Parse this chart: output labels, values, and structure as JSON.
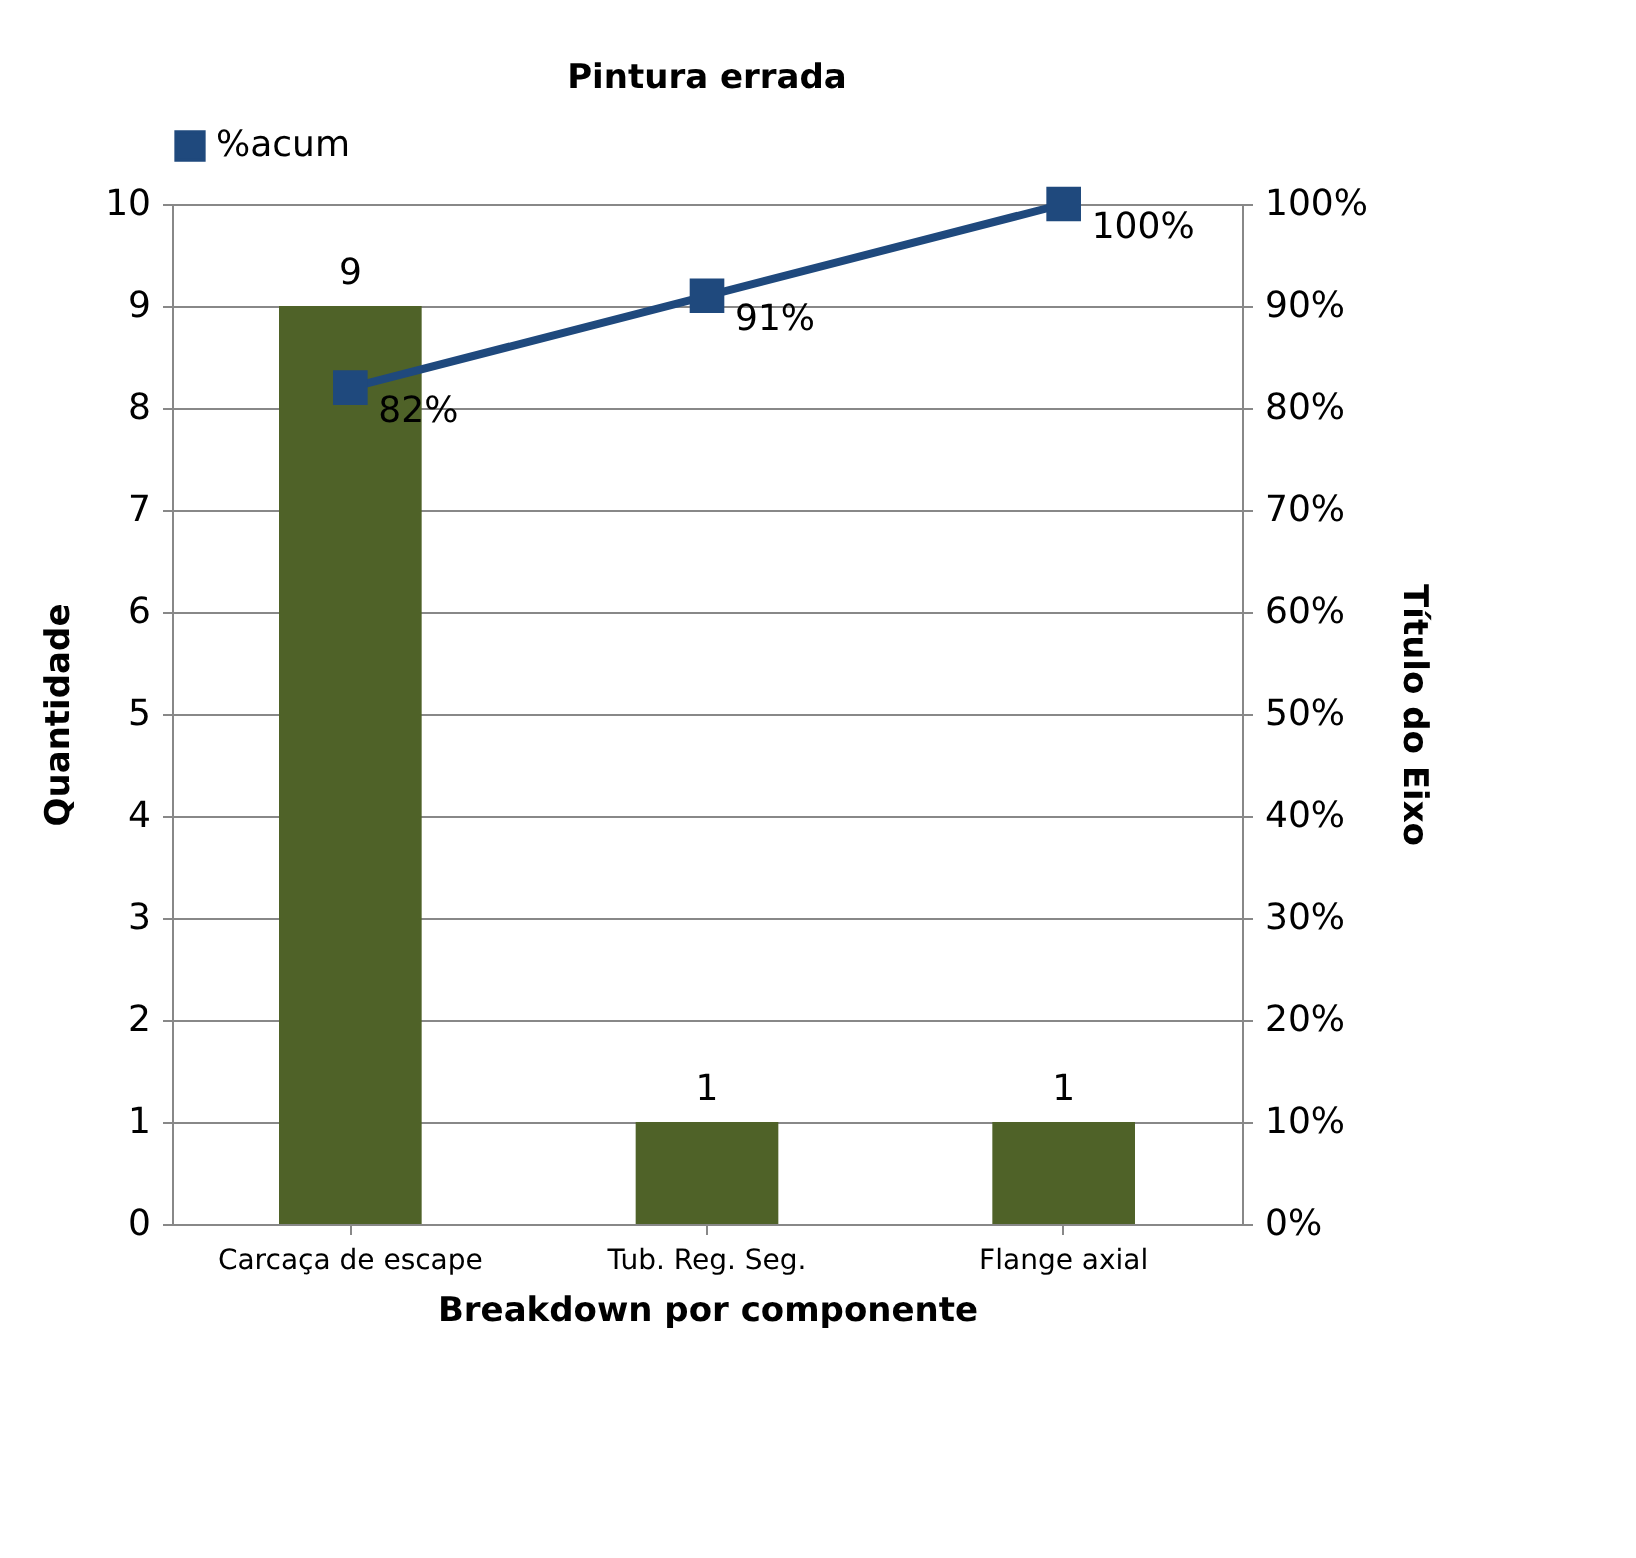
{
  "chart_data": {
    "type": "bar",
    "title": "Pintura errada",
    "xlabel": "Breakdown por componente",
    "ylabel": "Quantidade",
    "y2label": "Título do Eixo",
    "categories": [
      "Carcaça de escape",
      "Tub. Reg. Seg.",
      "Flange axial"
    ],
    "series": [
      {
        "color": "#4f6228",
        "values": [
          9,
          1,
          1
        ],
        "value_labels": [
          "9",
          "1",
          "1"
        ]
      },
      {
        "type": "line",
        "name": "%acum",
        "axis": "y2",
        "color": "#1f497d",
        "values": [
          82,
          91,
          100
        ],
        "value_labels": [
          "82%",
          "91%",
          "100%"
        ]
      }
    ],
    "ylim": [
      0,
      10
    ],
    "yticks": [
      0,
      1,
      2,
      3,
      4,
      5,
      6,
      7,
      8,
      9,
      10
    ],
    "y2lim": [
      0,
      100
    ],
    "y2ticks": [
      {
        "value": 0,
        "label": "0%"
      },
      {
        "value": 10,
        "label": "10%"
      },
      {
        "value": 20,
        "label": "20%"
      },
      {
        "value": 30,
        "label": "30%"
      },
      {
        "value": 40,
        "label": "40%"
      },
      {
        "value": 50,
        "label": "50%"
      },
      {
        "value": 60,
        "label": "60%"
      },
      {
        "value": 70,
        "label": "70%"
      },
      {
        "value": 80,
        "label": "80%"
      },
      {
        "value": 90,
        "label": "90%"
      },
      {
        "value": 100,
        "label": "100%"
      }
    ],
    "grid": "y",
    "legend": "top",
    "marker": "square",
    "line_style": "solid"
  }
}
